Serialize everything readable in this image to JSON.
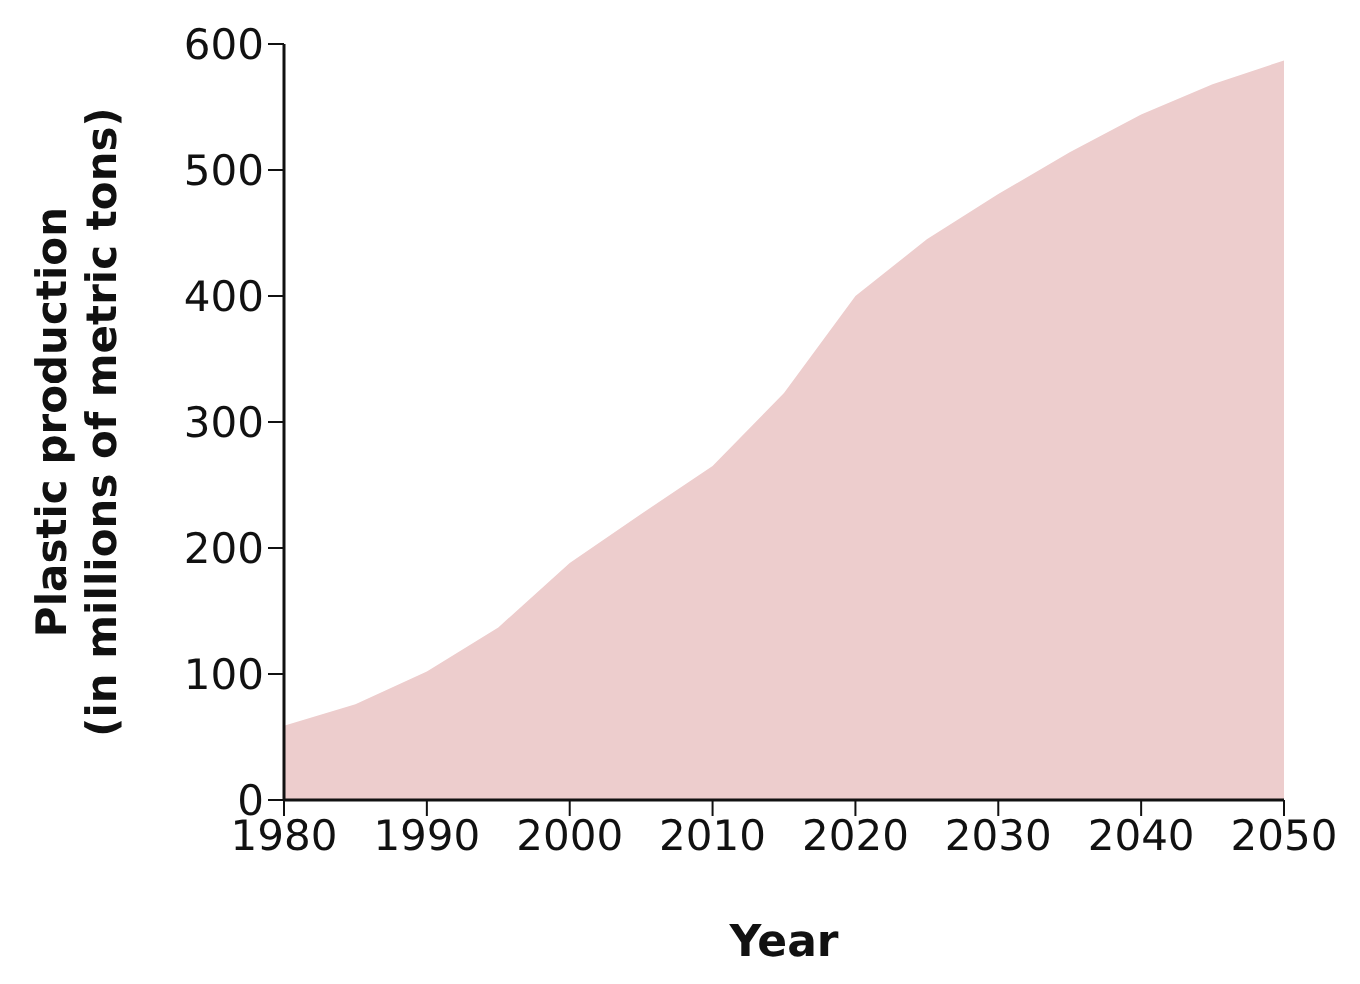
{
  "chart_data": {
    "type": "area",
    "xlabel": "Year",
    "ylabel": "Plastic production\n(in millions of metric tons)",
    "x": [
      1980,
      1985,
      1990,
      1995,
      2000,
      2005,
      2010,
      2015,
      2020,
      2025,
      2030,
      2035,
      2040,
      2045,
      2050
    ],
    "series": [
      {
        "color": "#edcdcd",
        "values": [
          59,
          76,
          102,
          137,
          188,
          227,
          265,
          323,
          400,
          445,
          481,
          514,
          544,
          568,
          587
        ]
      }
    ],
    "xlim": [
      1980,
      2050
    ],
    "xticks": [
      1980,
      1990,
      2000,
      2010,
      2020,
      2030,
      2040,
      2050
    ],
    "ylim": [
      0,
      600
    ],
    "yticks": [
      0,
      100,
      200,
      300,
      400,
      500,
      600
    ],
    "grid": false,
    "legend": false
  }
}
